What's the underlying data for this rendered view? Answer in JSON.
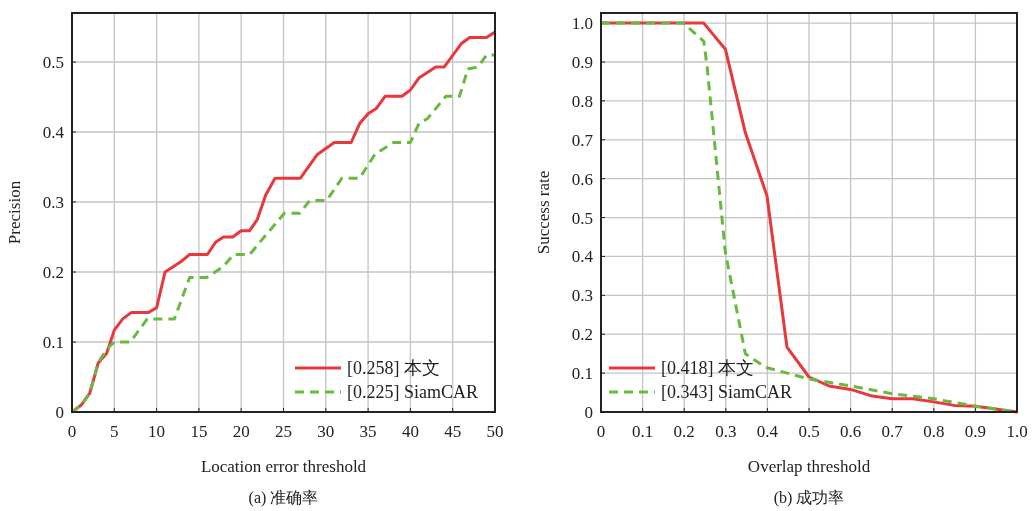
{
  "chart_data": [
    {
      "type": "line",
      "xlabel": "Location error threshold",
      "ylabel": "Precision",
      "annotations": [
        "(a) 准确率"
      ],
      "xlim": [
        0,
        50
      ],
      "ylim": [
        0,
        0.57
      ],
      "xticks": [
        0,
        5,
        10,
        15,
        20,
        25,
        30,
        35,
        40,
        45,
        50
      ],
      "yticks": [
        0,
        0.1,
        0.2,
        0.3,
        0.4,
        0.5
      ],
      "grid": true,
      "legend": "bottom right",
      "series": [
        {
          "name": "[0.258] 本文",
          "color": "#e8383d",
          "line_style": "solid",
          "x": [
            0,
            1.1,
            2.1,
            3.1,
            4.1,
            5,
            6,
            7,
            9,
            10,
            11,
            12.9,
            13.9,
            16,
            17,
            17.9,
            19,
            20,
            21,
            21.9,
            22.9,
            24,
            27,
            29,
            31,
            33,
            34,
            35,
            36,
            37,
            39,
            40,
            41,
            43,
            44,
            46,
            47,
            49,
            50
          ],
          "values": [
            0,
            0.01,
            0.027,
            0.07,
            0.084,
            0.117,
            0.133,
            0.142,
            0.142,
            0.149,
            0.2,
            0.215,
            0.225,
            0.225,
            0.243,
            0.25,
            0.25,
            0.259,
            0.259,
            0.275,
            0.31,
            0.334,
            0.334,
            0.368,
            0.385,
            0.385,
            0.412,
            0.426,
            0.434,
            0.451,
            0.451,
            0.46,
            0.477,
            0.493,
            0.493,
            0.526,
            0.535,
            0.535,
            0.543
          ]
        },
        {
          "name": "[0.225] SiamCAR",
          "color": "#6ab93f",
          "line_style": "dashed",
          "x": [
            0,
            1.1,
            2.1,
            3.1,
            4.1,
            5,
            6.9,
            8.9,
            12.1,
            13.9,
            15.9,
            17.9,
            19.1,
            21,
            22.1,
            25.1,
            26.9,
            28.1,
            30.1,
            31.9,
            34,
            35.8,
            38,
            40,
            41,
            42,
            44.2,
            45.8,
            46.8,
            48,
            49,
            50
          ],
          "values": [
            0,
            0.01,
            0.027,
            0.07,
            0.09,
            0.1,
            0.1,
            0.133,
            0.133,
            0.192,
            0.192,
            0.208,
            0.225,
            0.225,
            0.241,
            0.284,
            0.284,
            0.302,
            0.302,
            0.334,
            0.334,
            0.368,
            0.385,
            0.385,
            0.412,
            0.419,
            0.451,
            0.451,
            0.49,
            0.493,
            0.51,
            0.51
          ]
        }
      ]
    },
    {
      "type": "line",
      "xlabel": "Overlap threshold",
      "ylabel": "Success rate",
      "annotations": [
        "(b) 成功率"
      ],
      "xlim": [
        0,
        1
      ],
      "ylim": [
        0,
        1.026
      ],
      "xticks": [
        0,
        0.1,
        0.2,
        0.3,
        0.4,
        0.5,
        0.6,
        0.7,
        0.8,
        0.9,
        {
          "value": 1,
          "label": "1.0"
        }
      ],
      "yticks": [
        0,
        0.1,
        0.2,
        0.3,
        0.4,
        0.5,
        0.6,
        0.7,
        0.8,
        0.9,
        {
          "value": 1,
          "label": "1.0"
        }
      ],
      "grid": true,
      "legend": "bottom left",
      "series": [
        {
          "name": "[0.418] 本文",
          "color": "#e8383d",
          "line_style": "solid",
          "x": [
            0,
            0.247,
            0.299,
            0.347,
            0.399,
            0.447,
            0.5,
            0.548,
            0.6,
            0.652,
            0.7,
            0.749,
            0.8,
            0.849,
            0.901,
            1
          ],
          "values": [
            1,
            1,
            0.933,
            0.718,
            0.556,
            0.167,
            0.09,
            0.067,
            0.058,
            0.041,
            0.034,
            0.034,
            0.026,
            0.017,
            0.015,
            0
          ]
        },
        {
          "name": "[0.343] SiamCAR",
          "color": "#6ab93f",
          "line_style": "dashed",
          "x": [
            0,
            0.198,
            0.247,
            0.255,
            0.299,
            0.347,
            0.395,
            0.5,
            0.6,
            0.7,
            0.8,
            0.9,
            1
          ],
          "values": [
            1,
            1,
            0.953,
            0.889,
            0.41,
            0.15,
            0.115,
            0.085,
            0.067,
            0.047,
            0.034,
            0.015,
            0
          ]
        }
      ]
    }
  ]
}
